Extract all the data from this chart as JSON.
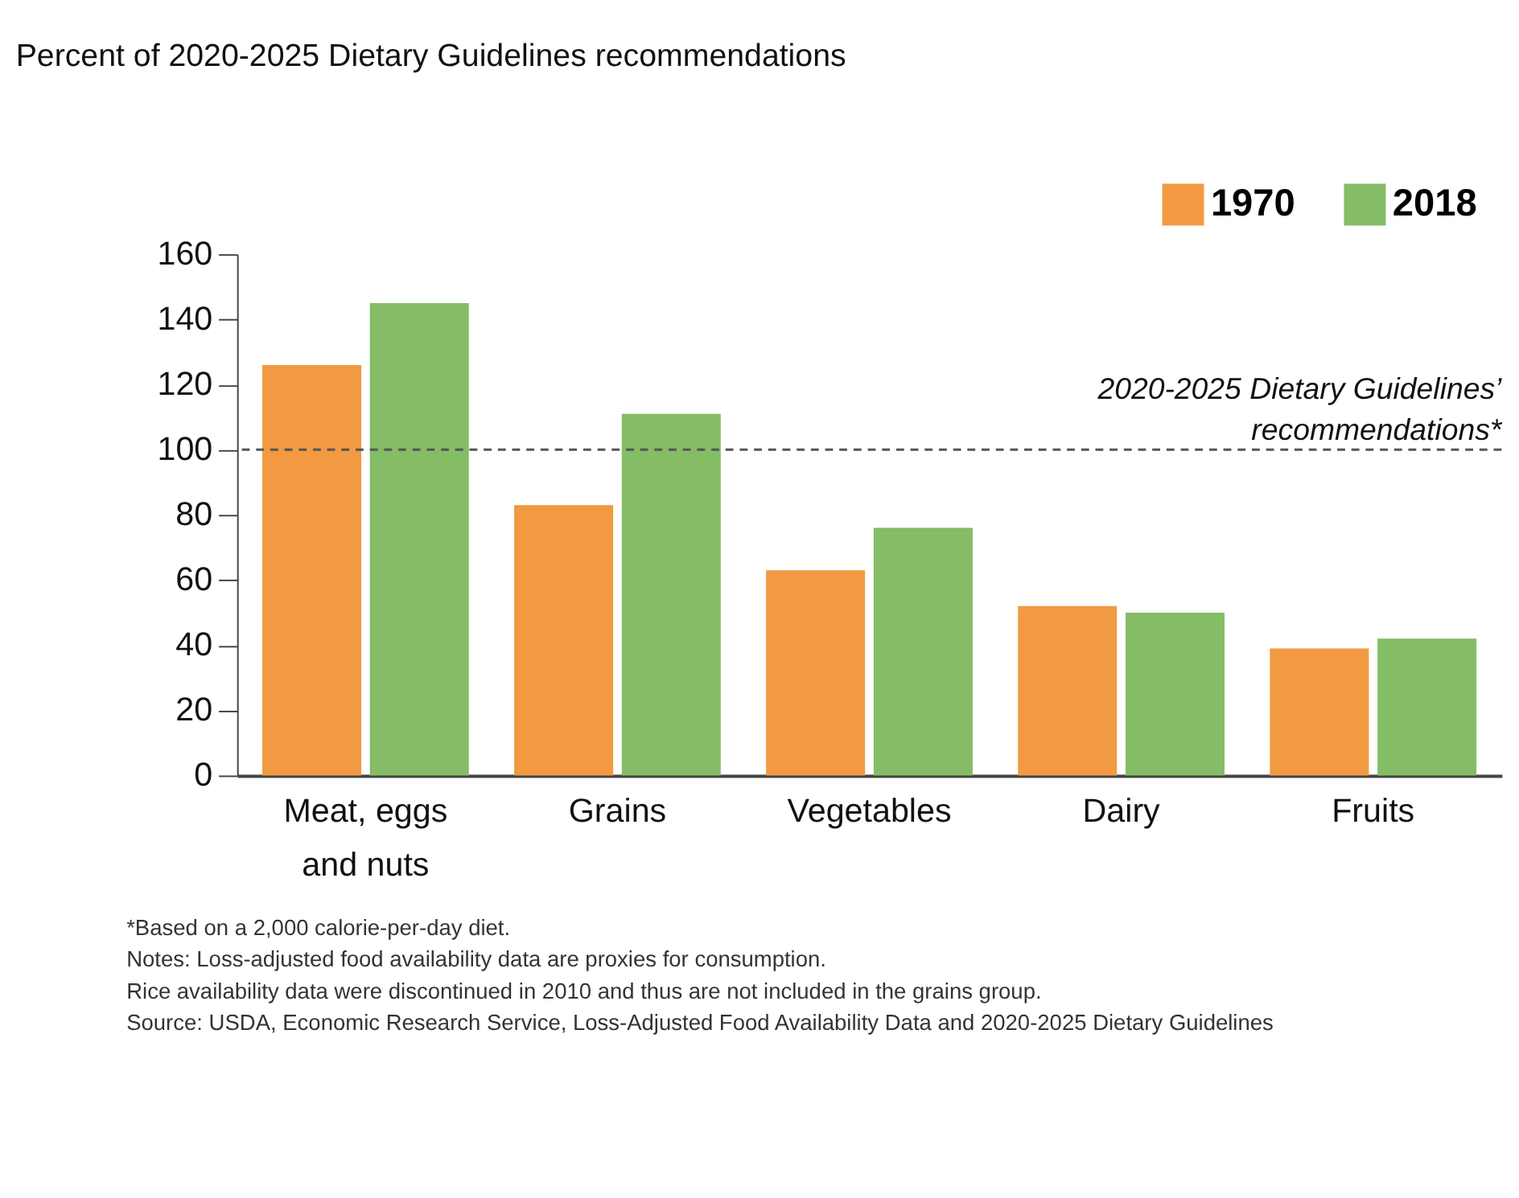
{
  "chart_data": {
    "type": "bar",
    "title": "Percent of 2020-2025 Dietary Guidelines recommendations",
    "categories": [
      "Meat, eggs and nuts",
      "Grains",
      "Vegetables",
      "Dairy",
      "Fruits"
    ],
    "series": [
      {
        "name": "1970",
        "color": "#f19a41",
        "values": [
          126,
          83,
          63,
          52,
          39
        ]
      },
      {
        "name": "2018",
        "color": "#85bc66",
        "values": [
          145,
          111,
          76,
          50,
          42
        ]
      }
    ],
    "ylim": [
      0,
      160
    ],
    "yticks": [
      0,
      20,
      40,
      60,
      80,
      100,
      120,
      140,
      160
    ],
    "grid": false,
    "legend": "top right",
    "ref_lines": [
      {
        "axis": "y",
        "value": 100,
        "label": "2020-2025 Dietary Guidelines’ recommendations*",
        "color": "#555555",
        "line_style": "dashed"
      }
    ],
    "annotations": [
      "*Based on a 2,000 calorie-per-day diet.",
      "Notes: Loss-adjusted food availability data are proxies for consumption.",
      "Rice availability data were discontinued in 2010 and thus are not included in the grains group.",
      "Source: USDA, Economic Research Service, Loss-Adjusted Food Availability Data and 2020-2025 Dietary Guidelines"
    ]
  }
}
